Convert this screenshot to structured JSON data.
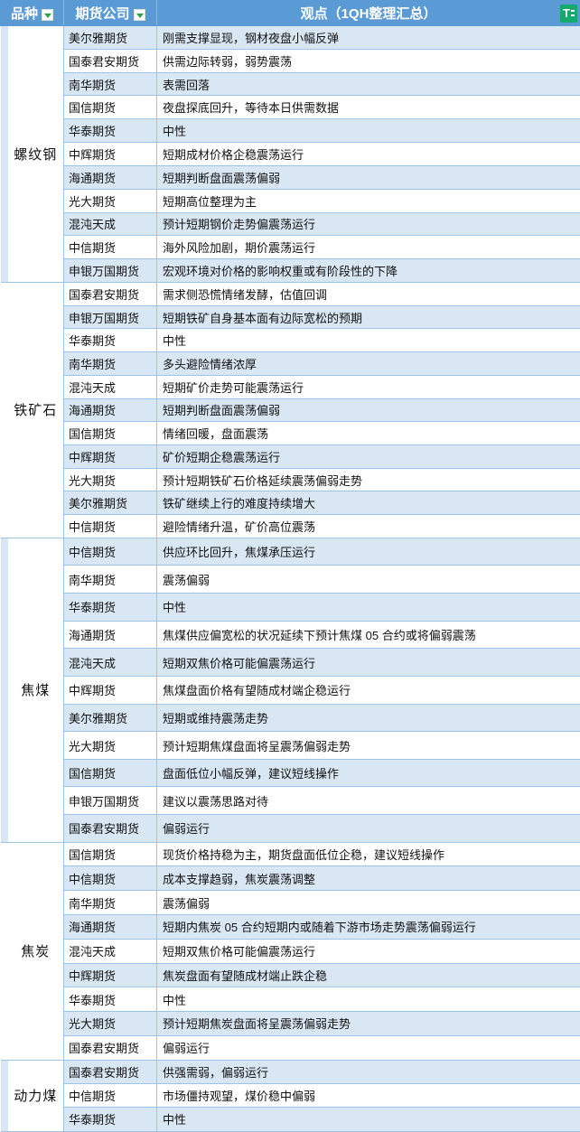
{
  "table": {
    "columns": {
      "variety": "品种",
      "company": "期货公司",
      "view": "观点（1QH整理汇总）"
    },
    "logo_text": "T",
    "groups": [
      {
        "name": "螺纹钢",
        "rows": [
          {
            "company": "美尔雅期货",
            "view": "刚需支撑显现，钢材夜盘小幅反弹"
          },
          {
            "company": "国泰君安期货",
            "view": "供需边际转弱，弱势震荡"
          },
          {
            "company": "南华期货",
            "view": "表需回落"
          },
          {
            "company": "国信期货",
            "view": "夜盘探底回升，等待本日供需数据"
          },
          {
            "company": "华泰期货",
            "view": "中性"
          },
          {
            "company": "中辉期货",
            "view": "短期成材价格企稳震荡运行"
          },
          {
            "company": "海通期货",
            "view": "短期判断盘面震荡偏弱"
          },
          {
            "company": "光大期货",
            "view": "短期高位整理为主"
          },
          {
            "company": "混沌天成",
            "view": "预计短期钢价走势偏震荡运行"
          },
          {
            "company": "中信期货",
            "view": "海外风险加剧，期价震荡运行"
          },
          {
            "company": "申银万国期货",
            "view": "宏观环境对价格的影响权重或有阶段性的下降"
          }
        ]
      },
      {
        "name": "铁矿石",
        "rows": [
          {
            "company": "国泰君安期货",
            "view": "需求侧恐慌情绪发酵，估值回调"
          },
          {
            "company": "申银万国期货",
            "view": "短期铁矿自身基本面有边际宽松的预期"
          },
          {
            "company": "华泰期货",
            "view": "中性"
          },
          {
            "company": "南华期货",
            "view": "多头避险情绪浓厚"
          },
          {
            "company": "混沌天成",
            "view": "短期矿价走势可能震荡运行"
          },
          {
            "company": "海通期货",
            "view": "短期判断盘面震荡偏弱"
          },
          {
            "company": "国信期货",
            "view": "情绪回暖，盘面震荡"
          },
          {
            "company": "中辉期货",
            "view": "矿价短期企稳震荡运行"
          },
          {
            "company": "光大期货",
            "view": "预计短期铁矿石价格延续震荡偏弱走势"
          },
          {
            "company": "美尔雅期货",
            "view": "铁矿继续上行的难度持续增大"
          },
          {
            "company": "中信期货",
            "view": "避险情绪升温，矿价高位震荡"
          }
        ]
      },
      {
        "name": "焦煤",
        "rows": [
          {
            "company": "中信期货",
            "view": "供应环比回升，焦煤承压运行"
          },
          {
            "company": "南华期货",
            "view": "震荡偏弱"
          },
          {
            "company": "华泰期货",
            "view": "中性"
          },
          {
            "company": "海通期货",
            "view": "焦煤供应偏宽松的状况延续下预计焦煤 05 合约或将偏弱震荡"
          },
          {
            "company": "混沌天成",
            "view": "短期双焦价格可能偏震荡运行"
          },
          {
            "company": "中辉期货",
            "view": "焦煤盘面价格有望随成材端企稳运行"
          },
          {
            "company": "美尔雅期货",
            "view": "短期或维持震荡走势"
          },
          {
            "company": "光大期货",
            "view": "预计短期焦煤盘面将呈震荡偏弱走势"
          },
          {
            "company": "国信期货",
            "view": "盘面低位小幅反弹，建议短线操作"
          },
          {
            "company": "申银万国期货",
            "view": "建议以震荡思路对待"
          },
          {
            "company": "国泰君安期货",
            "view": "偏弱运行"
          }
        ]
      },
      {
        "name": "焦炭",
        "rows": [
          {
            "company": "国信期货",
            "view": "现货价格持稳为主，期货盘面低位企稳，建议短线操作"
          },
          {
            "company": "中信期货",
            "view": "成本支撑趋弱，焦炭震荡调整"
          },
          {
            "company": "南华期货",
            "view": "震荡偏弱"
          },
          {
            "company": "海通期货",
            "view": "短期内焦炭 05 合约短期内或随着下游市场走势震荡偏弱运行"
          },
          {
            "company": "混沌天成",
            "view": "短期双焦价格可能偏震荡运行"
          },
          {
            "company": "中辉期货",
            "view": "焦炭盘面有望随成材端止跌企稳"
          },
          {
            "company": "华泰期货",
            "view": "中性"
          },
          {
            "company": "光大期货",
            "view": "预计短期焦炭盘面将呈震荡偏弱走势"
          },
          {
            "company": "国泰君安期货",
            "view": "偏弱运行"
          }
        ]
      },
      {
        "name": "动力煤",
        "rows": [
          {
            "company": "国泰君安期货",
            "view": "供强需弱，偏弱运行"
          },
          {
            "company": "中信期货",
            "view": "市场僵持观望，煤价稳中偏弱"
          },
          {
            "company": "华泰期货",
            "view": "中性"
          }
        ]
      }
    ]
  },
  "colors": {
    "header_bg": "#5B9BD5",
    "band": "#D9E7F4",
    "border": "#9DC3E6",
    "logo_green": "#16A96E",
    "filter_green": "#2BA245"
  }
}
